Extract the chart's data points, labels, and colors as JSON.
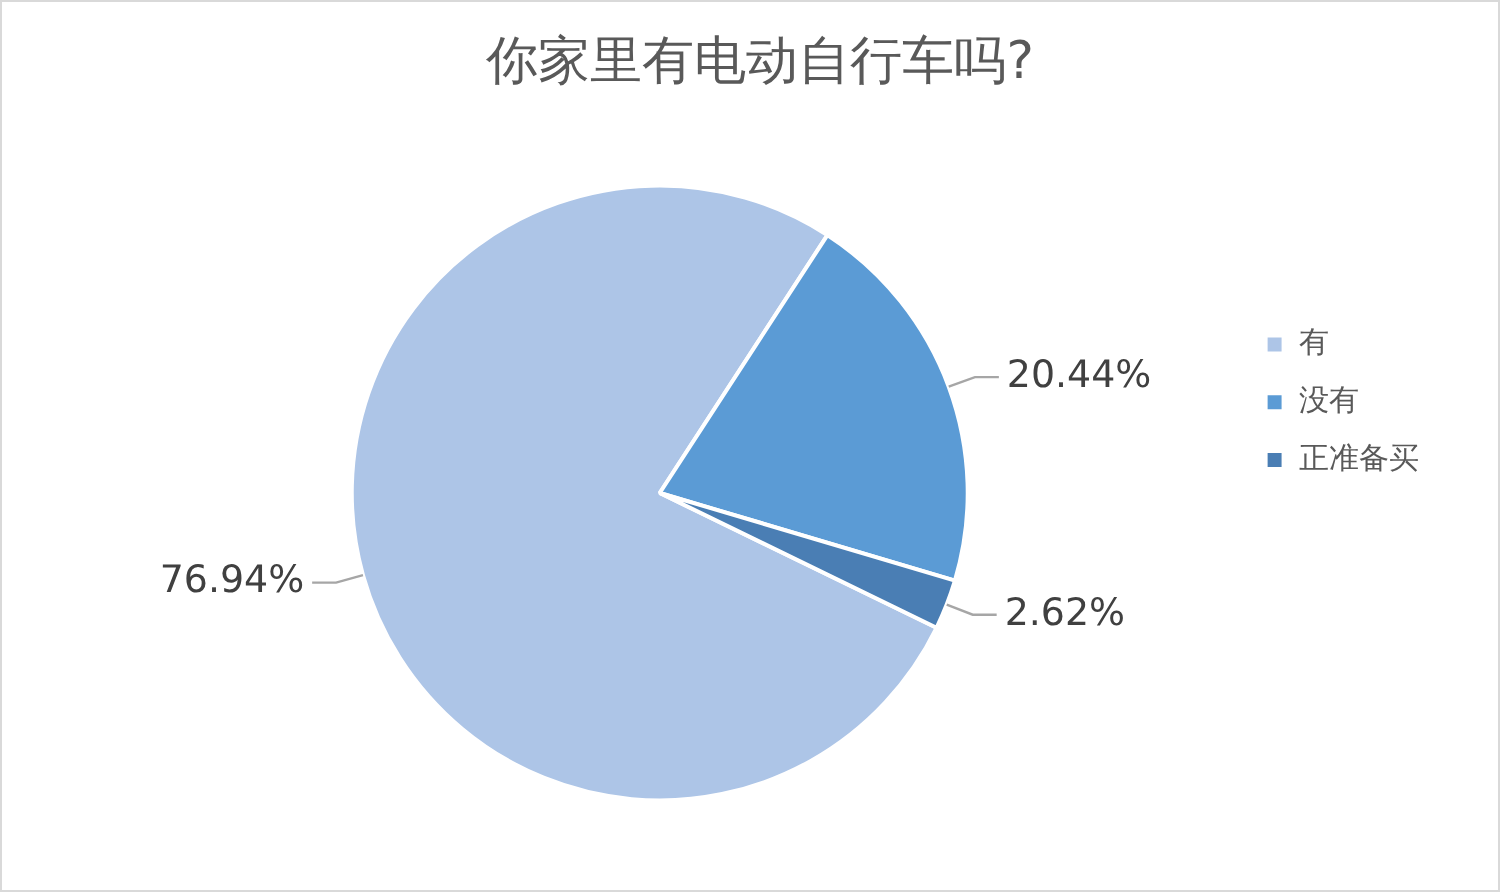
{
  "chart_data": {
    "type": "pie",
    "title": "你家里有电动自行车吗?",
    "categories": [
      "有",
      "没有",
      "正准备买"
    ],
    "values": [
      76.94,
      20.44,
      2.62
    ],
    "value_labels": [
      "76.94%",
      "20.44%",
      "2.62%"
    ],
    "colors": [
      "#adc5e7",
      "#5b9bd5",
      "#4a7eb4"
    ],
    "legend": "right"
  }
}
